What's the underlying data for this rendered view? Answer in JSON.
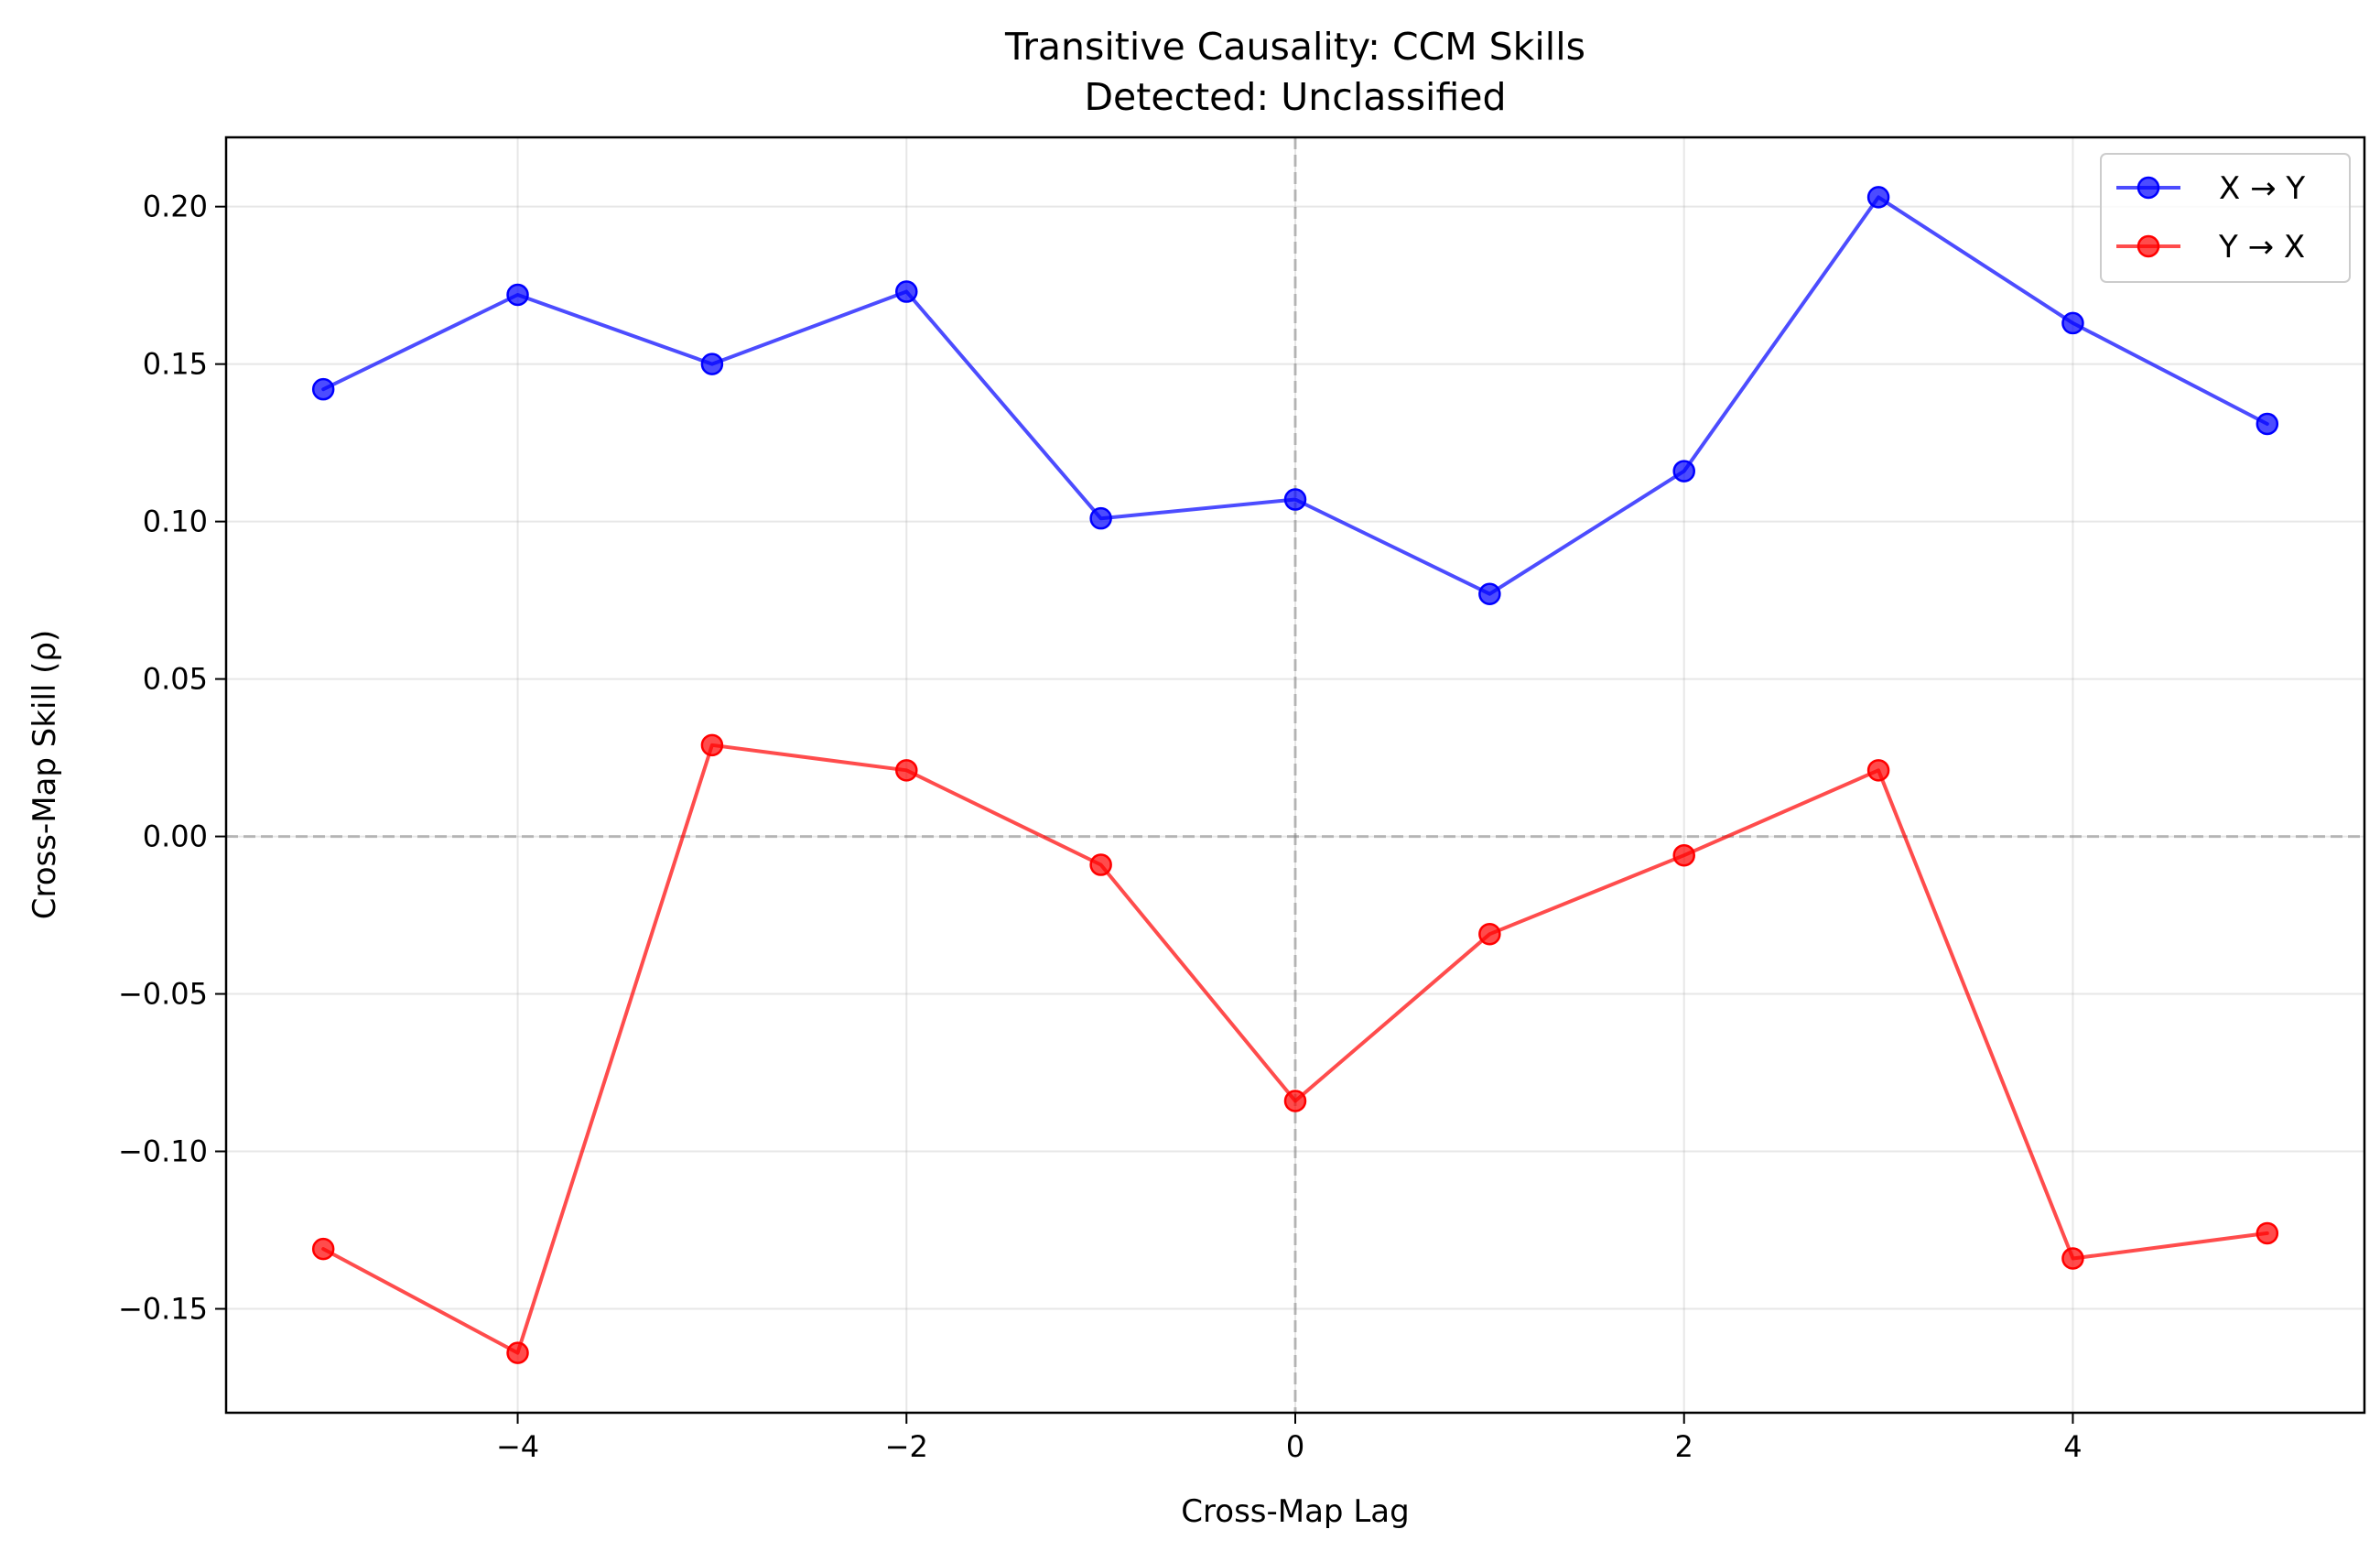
{
  "chart_data": {
    "type": "line",
    "title": "Transitive Causality: CCM Skills",
    "subtitle": "Detected: Unclassified",
    "xlabel": "Cross-Map Lag",
    "ylabel": "Cross-Map Skill (ρ)",
    "x": [
      -5,
      -4,
      -3,
      -2,
      -1,
      0,
      1,
      2,
      3,
      4,
      5
    ],
    "xlim": [
      -5.5,
      5.5
    ],
    "ylim": [
      -0.183,
      0.222
    ],
    "xticks": [
      -4,
      -2,
      0,
      2,
      4
    ],
    "xtick_labels": [
      "−4",
      "−2",
      "0",
      "2",
      "4"
    ],
    "yticks": [
      -0.15,
      -0.1,
      -0.05,
      0.0,
      0.05,
      0.1,
      0.15,
      0.2
    ],
    "ytick_labels": [
      "−0.15",
      "−0.10",
      "−0.05",
      "0.00",
      "0.05",
      "0.10",
      "0.15",
      "0.20"
    ],
    "grid": true,
    "reference_lines": {
      "x": 0,
      "y": 0
    },
    "legend_position": "upper right",
    "series": [
      {
        "name": "X → Y",
        "color": "#0000ff",
        "values": [
          0.142,
          0.172,
          0.15,
          0.173,
          0.101,
          0.107,
          0.077,
          0.116,
          0.203,
          0.163,
          0.131
        ]
      },
      {
        "name": "Y → X",
        "color": "#ff0000",
        "values": [
          -0.131,
          -0.164,
          0.029,
          0.021,
          -0.009,
          -0.084,
          -0.031,
          -0.006,
          0.021,
          -0.134,
          -0.126
        ]
      }
    ]
  }
}
